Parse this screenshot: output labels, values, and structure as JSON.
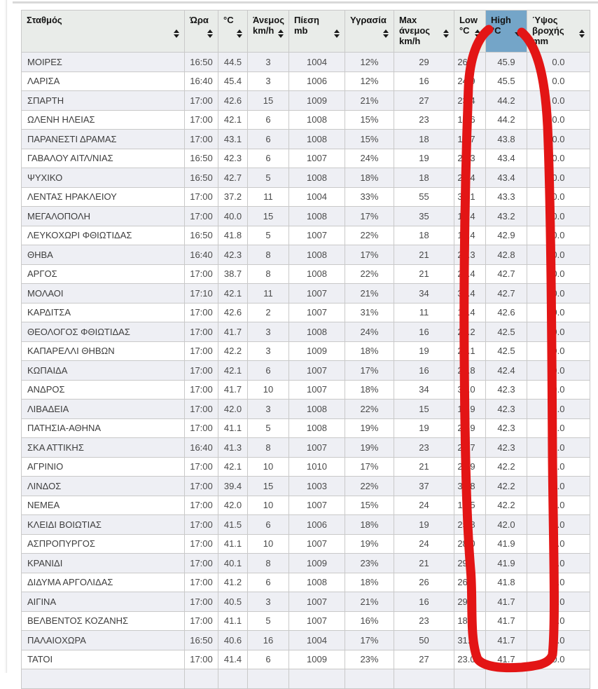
{
  "colors": {
    "annotation_red": "#e31515",
    "highlight_header_blue": "#74a5c8",
    "header_bg": "#e9ece9",
    "row_stripe": "#eeeff4"
  },
  "annotation": {
    "type": "hand-drawn-marker-rectangle",
    "around_column": "High °C"
  },
  "table": {
    "columns": [
      {
        "id": "station",
        "label_lines": [
          "Σταθμός"
        ],
        "sort": "both"
      },
      {
        "id": "time",
        "label_lines": [
          "Ώρα"
        ],
        "sort": "both"
      },
      {
        "id": "temp",
        "label_lines": [
          "°C"
        ],
        "sort": "both"
      },
      {
        "id": "wind",
        "label_lines": [
          "Άνεμος",
          "km/h"
        ],
        "sort": "both"
      },
      {
        "id": "pressure",
        "label_lines": [
          "Πίεση",
          "mb"
        ],
        "sort": "both"
      },
      {
        "id": "humidity",
        "label_lines": [
          "Υγρασία"
        ],
        "sort": "both"
      },
      {
        "id": "max_wind",
        "label_lines": [
          "Max",
          "άνεμος",
          "km/h"
        ],
        "sort": "both"
      },
      {
        "id": "low",
        "label_lines": [
          "Low",
          "°C"
        ],
        "sort": "both"
      },
      {
        "id": "high",
        "label_lines": [
          "High",
          "°C"
        ],
        "sort": "desc",
        "highlighted": true
      },
      {
        "id": "rain",
        "label_lines": [
          "Ύψος",
          "βροχής",
          "mm"
        ],
        "sort": "both"
      }
    ],
    "rows": [
      {
        "station": "ΜΟΙΡΕΣ",
        "time": "16:50",
        "temp": "44.5",
        "wind": "3",
        "pressure": "1004",
        "humidity": "12%",
        "max_wind": "29",
        "low": "26.1",
        "high": "45.9",
        "rain": "0.0"
      },
      {
        "station": "ΛΑΡΙΣΑ",
        "time": "16:40",
        "temp": "45.4",
        "wind": "3",
        "pressure": "1006",
        "humidity": "12%",
        "max_wind": "16",
        "low": "24.9",
        "high": "45.5",
        "rain": "0.0"
      },
      {
        "station": "ΣΠΑΡΤΗ",
        "time": "17:00",
        "temp": "42.6",
        "wind": "15",
        "pressure": "1009",
        "humidity": "21%",
        "max_wind": "27",
        "low": "23.4",
        "high": "44.2",
        "rain": "0.0"
      },
      {
        "station": "ΩΛΕΝΗ ΗΛΕΙΑΣ",
        "time": "17:00",
        "temp": "42.1",
        "wind": "6",
        "pressure": "1008",
        "humidity": "15%",
        "max_wind": "23",
        "low": "16.6",
        "high": "44.2",
        "rain": "0.0"
      },
      {
        "station": "ΠΑΡΑΝΕΣΤΙ ΔΡΑΜΑΣ",
        "time": "17:00",
        "temp": "43.1",
        "wind": "6",
        "pressure": "1008",
        "humidity": "15%",
        "max_wind": "18",
        "low": "17.7",
        "high": "43.8",
        "rain": "0.0"
      },
      {
        "station": "ΓΑΒΑΛΟΥ ΑΙΤΛ/ΝΙΑΣ",
        "time": "16:50",
        "temp": "42.3",
        "wind": "6",
        "pressure": "1007",
        "humidity": "24%",
        "max_wind": "19",
        "low": "23.3",
        "high": "43.4",
        "rain": "0.0"
      },
      {
        "station": "ΨΥΧΙΚΟ",
        "time": "16:50",
        "temp": "42.7",
        "wind": "5",
        "pressure": "1008",
        "humidity": "18%",
        "max_wind": "18",
        "low": "24.4",
        "high": "43.4",
        "rain": "0.0"
      },
      {
        "station": "ΛΕΝΤΑΣ ΗΡΑΚΛΕΙΟΥ",
        "time": "17:00",
        "temp": "37.2",
        "wind": "11",
        "pressure": "1004",
        "humidity": "33%",
        "max_wind": "55",
        "low": "34.1",
        "high": "43.3",
        "rain": "0.0"
      },
      {
        "station": "ΜΕΓΑΛΟΠΟΛΗ",
        "time": "17:00",
        "temp": "40.0",
        "wind": "15",
        "pressure": "1008",
        "humidity": "17%",
        "max_wind": "35",
        "low": "18.4",
        "high": "43.2",
        "rain": "0.0"
      },
      {
        "station": "ΛΕΥΚΟΧΩΡΙ ΦΘΙΩΤΙΔΑΣ",
        "time": "16:50",
        "temp": "41.8",
        "wind": "5",
        "pressure": "1007",
        "humidity": "22%",
        "max_wind": "18",
        "low": "18.4",
        "high": "42.9",
        "rain": "0.0"
      },
      {
        "station": "ΘΗΒΑ",
        "time": "16:40",
        "temp": "42.3",
        "wind": "8",
        "pressure": "1008",
        "humidity": "17%",
        "max_wind": "21",
        "low": "26.3",
        "high": "42.8",
        "rain": "0.0"
      },
      {
        "station": "ΑΡΓΟΣ",
        "time": "17:00",
        "temp": "38.7",
        "wind": "8",
        "pressure": "1008",
        "humidity": "22%",
        "max_wind": "21",
        "low": "24.4",
        "high": "42.7",
        "rain": "0.0"
      },
      {
        "station": "ΜΟΛΑΟΙ",
        "time": "17:10",
        "temp": "42.1",
        "wind": "11",
        "pressure": "1007",
        "humidity": "21%",
        "max_wind": "34",
        "low": "30.4",
        "high": "42.7",
        "rain": "0.0"
      },
      {
        "station": "ΚΑΡΔΙΤΣΑ",
        "time": "17:00",
        "temp": "42.6",
        "wind": "2",
        "pressure": "1007",
        "humidity": "31%",
        "max_wind": "11",
        "low": "19.4",
        "high": "42.6",
        "rain": "0.0"
      },
      {
        "station": "ΘΕΟΛΟΓΟΣ ΦΘΙΩΤΙΔΑΣ",
        "time": "17:00",
        "temp": "41.7",
        "wind": "3",
        "pressure": "1008",
        "humidity": "24%",
        "max_wind": "16",
        "low": "24.2",
        "high": "42.5",
        "rain": "0.0"
      },
      {
        "station": "ΚΑΠΑΡΕΛΛΙ ΘΗΒΩΝ",
        "time": "17:00",
        "temp": "42.2",
        "wind": "3",
        "pressure": "1009",
        "humidity": "18%",
        "max_wind": "19",
        "low": "28.1",
        "high": "42.5",
        "rain": "0.0"
      },
      {
        "station": "ΚΩΠΑΙΔΑ",
        "time": "17:00",
        "temp": "42.1",
        "wind": "6",
        "pressure": "1007",
        "humidity": "17%",
        "max_wind": "16",
        "low": "22.8",
        "high": "42.4",
        "rain": "0.0"
      },
      {
        "station": "ΑΝΔΡΟΣ",
        "time": "17:00",
        "temp": "41.7",
        "wind": "10",
        "pressure": "1007",
        "humidity": "18%",
        "max_wind": "34",
        "low": "31.0",
        "high": "42.3",
        "rain": "0.0"
      },
      {
        "station": "ΛΙΒΑΔΕΙΑ",
        "time": "17:00",
        "temp": "42.0",
        "wind": "3",
        "pressure": "1008",
        "humidity": "22%",
        "max_wind": "15",
        "low": "19.9",
        "high": "42.3",
        "rain": "0.0"
      },
      {
        "station": "ΠΑΤΗΣΙΑ-ΑΘΗΝΑ",
        "time": "17:00",
        "temp": "41.1",
        "wind": "5",
        "pressure": "1008",
        "humidity": "19%",
        "max_wind": "19",
        "low": "29.9",
        "high": "42.3",
        "rain": "0.0"
      },
      {
        "station": "ΣΚΑ ΑΤΤΙΚΗΣ",
        "time": "16:40",
        "temp": "41.3",
        "wind": "8",
        "pressure": "1007",
        "humidity": "19%",
        "max_wind": "23",
        "low": "27.7",
        "high": "42.3",
        "rain": "0.0"
      },
      {
        "station": "ΑΓΡΙΝΙΟ",
        "time": "17:00",
        "temp": "42.1",
        "wind": "10",
        "pressure": "1010",
        "humidity": "17%",
        "max_wind": "21",
        "low": "23.9",
        "high": "42.2",
        "rain": "0.0"
      },
      {
        "station": "ΛΙΝΔΟΣ",
        "time": "17:00",
        "temp": "39.4",
        "wind": "15",
        "pressure": "1003",
        "humidity": "22%",
        "max_wind": "37",
        "low": "34.8",
        "high": "42.2",
        "rain": "0.0"
      },
      {
        "station": "ΝΕΜΕΑ",
        "time": "17:00",
        "temp": "42.0",
        "wind": "10",
        "pressure": "1007",
        "humidity": "15%",
        "max_wind": "24",
        "low": "18.5",
        "high": "42.2",
        "rain": "0.0"
      },
      {
        "station": "ΚΛΕΙΔΙ ΒΟΙΩΤΙΑΣ",
        "time": "17:00",
        "temp": "41.5",
        "wind": "6",
        "pressure": "1006",
        "humidity": "18%",
        "max_wind": "19",
        "low": "25.8",
        "high": "42.0",
        "rain": "0.0"
      },
      {
        "station": "ΑΣΠΡΟΠΥΡΓΟΣ",
        "time": "17:00",
        "temp": "41.1",
        "wind": "10",
        "pressure": "1007",
        "humidity": "19%",
        "max_wind": "24",
        "low": "28.0",
        "high": "41.9",
        "rain": "0.0"
      },
      {
        "station": "ΚΡΑΝΙΔΙ",
        "time": "17:00",
        "temp": "40.1",
        "wind": "8",
        "pressure": "1009",
        "humidity": "23%",
        "max_wind": "21",
        "low": "29.1",
        "high": "41.9",
        "rain": "0.0"
      },
      {
        "station": "ΔΙΔΥΜΑ ΑΡΓΟΛΙΔΑΣ",
        "time": "17:00",
        "temp": "41.2",
        "wind": "6",
        "pressure": "1008",
        "humidity": "18%",
        "max_wind": "26",
        "low": "26.2",
        "high": "41.8",
        "rain": "0.0"
      },
      {
        "station": "ΑΙΓΙΝΑ",
        "time": "17:00",
        "temp": "40.5",
        "wind": "3",
        "pressure": "1007",
        "humidity": "21%",
        "max_wind": "16",
        "low": "29.1",
        "high": "41.7",
        "rain": "0.0"
      },
      {
        "station": "ΒΕΛΒΕΝΤΟΣ ΚΟΖΑΝΗΣ",
        "time": "17:00",
        "temp": "41.1",
        "wind": "5",
        "pressure": "1007",
        "humidity": "16%",
        "max_wind": "23",
        "low": "18.3",
        "high": "41.7",
        "rain": "0.0"
      },
      {
        "station": "ΠΑΛΑΙΟΧΩΡΑ",
        "time": "16:50",
        "temp": "40.6",
        "wind": "16",
        "pressure": "1004",
        "humidity": "17%",
        "max_wind": "50",
        "low": "31.6",
        "high": "41.7",
        "rain": "0.0"
      },
      {
        "station": "ΤΑΤΟΙ",
        "time": "17:00",
        "temp": "41.4",
        "wind": "6",
        "pressure": "1009",
        "humidity": "23%",
        "max_wind": "27",
        "low": "23.0",
        "high": "41.7",
        "rain": "0.0"
      }
    ]
  }
}
